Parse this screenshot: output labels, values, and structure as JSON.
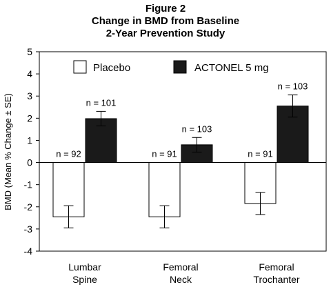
{
  "figure_label": "Figure 2",
  "chart_data": {
    "type": "bar",
    "title": "Change in BMD from Baseline",
    "subtitle": "2-Year Prevention Study",
    "ylabel": "BMD (Mean % Change ± SE)",
    "xlabel": "",
    "ylim": [
      -4,
      5
    ],
    "yticks": [
      -4,
      -3,
      -2,
      -1,
      0,
      1,
      2,
      3,
      4,
      5
    ],
    "grid": false,
    "legend_position": "top",
    "categories": [
      [
        "Lumbar",
        "Spine"
      ],
      [
        "Femoral",
        "Neck"
      ],
      [
        "Femoral",
        "Trochanter"
      ]
    ],
    "series": [
      {
        "name": "Placebo",
        "color": "#ffffff",
        "values": [
          -2.45,
          -2.45,
          -1.85
        ],
        "errors": [
          0.5,
          0.5,
          0.5
        ],
        "n_labels": [
          "n = 92",
          "n = 91",
          "n = 91"
        ]
      },
      {
        "name": "ACTONEL 5 mg",
        "color": "#1a1a1a",
        "values": [
          1.98,
          0.8,
          2.55
        ],
        "errors": [
          0.33,
          0.33,
          0.5
        ],
        "n_labels": [
          "n = 101",
          "n = 103",
          "n = 103"
        ]
      }
    ]
  }
}
